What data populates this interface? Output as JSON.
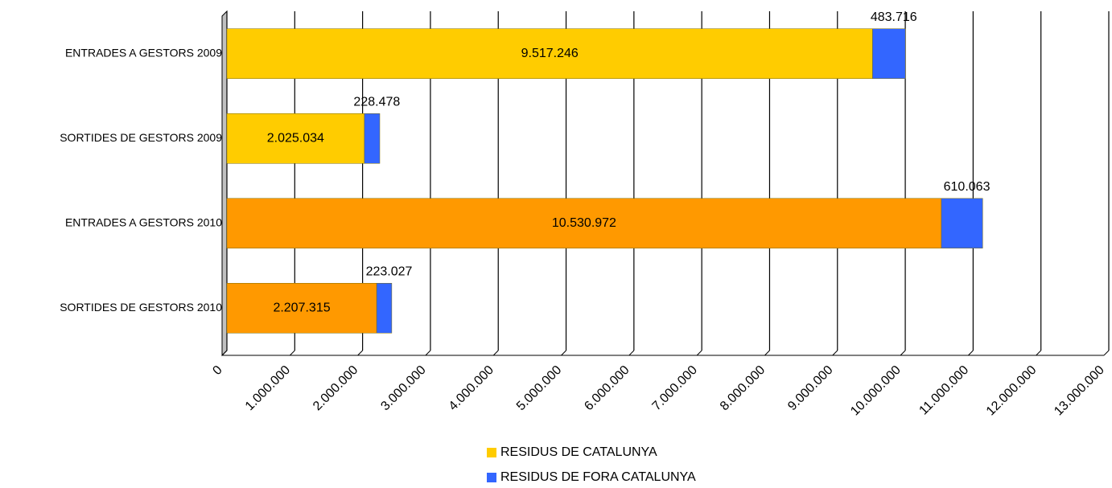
{
  "chart_data": {
    "type": "bar",
    "orientation": "horizontal",
    "stacked": true,
    "categories": [
      "ENTRADES A GESTORS 2009",
      "SORTIDES DE GESTORS 2009",
      "ENTRADES A GESTORS 2010",
      "SORTIDES DE GESTORS 2010"
    ],
    "series": [
      {
        "name": "RESIDUS DE CATALUNYA",
        "color": "#FFCC00",
        "colors": [
          "#FFCC00",
          "#FFCC00",
          "#FF9900",
          "#FF9900"
        ],
        "values": [
          9517246,
          2025034,
          10530972,
          2207315
        ],
        "value_labels": [
          "9.517.246",
          "2.025.034",
          "10.530.972",
          "2.207.315"
        ]
      },
      {
        "name": "RESIDUS DE FORA CATALUNYA",
        "color": "#3366FF",
        "values": [
          483716,
          228478,
          610063,
          223027
        ],
        "value_labels": [
          "483.716",
          "228.478",
          "610.063",
          "223.027"
        ]
      }
    ],
    "xlim": [
      0,
      13000000
    ],
    "xticks": [
      0,
      {
        "value": 1000000,
        "label": "1.000.000"
      },
      {
        "value": 2000000,
        "label": "2.000.000"
      },
      {
        "value": 3000000,
        "label": "3.000.000"
      },
      {
        "value": 4000000,
        "label": "4.000.000"
      },
      {
        "value": 5000000,
        "label": "5.000.000"
      },
      {
        "value": 6000000,
        "label": "6.000.000"
      },
      {
        "value": 7000000,
        "label": "7.000.000"
      },
      {
        "value": 8000000,
        "label": "8.000.000"
      },
      {
        "value": 9000000,
        "label": "9.000.000"
      },
      {
        "value": 10000000,
        "label": "10.000.000"
      },
      {
        "value": 11000000,
        "label": "11.000.000"
      },
      {
        "value": 12000000,
        "label": "12.000.000"
      },
      {
        "value": 13000000,
        "label": "13.000.000"
      }
    ],
    "grid": true,
    "legend": "bottom"
  }
}
